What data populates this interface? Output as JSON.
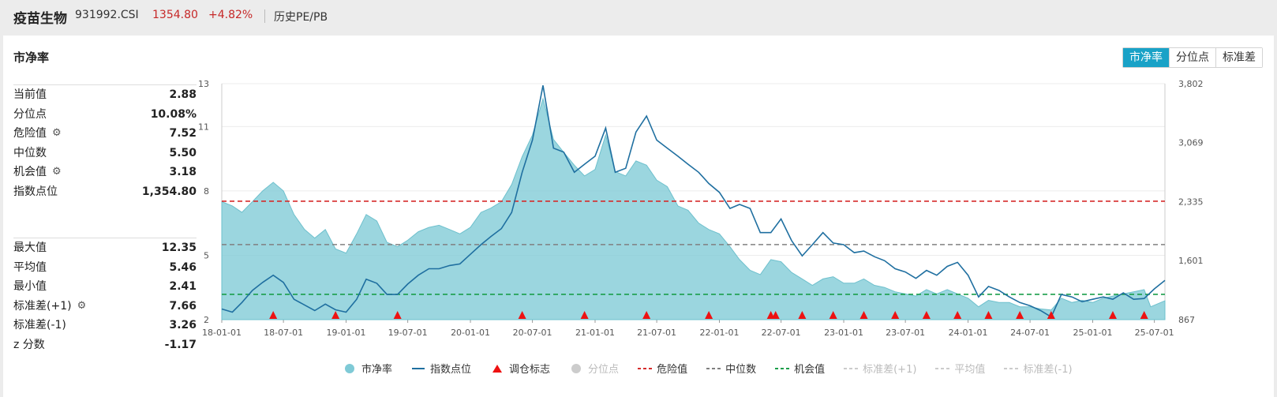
{
  "header": {
    "name": "疫苗生物",
    "code": "931992.CSI",
    "price": "1354.80",
    "change": "+4.82%",
    "tab": "历史PE/PB"
  },
  "card": {
    "title": "市净率",
    "buttons": [
      {
        "label": "市净率",
        "active": true
      },
      {
        "label": "分位点",
        "active": false
      },
      {
        "label": "标准差",
        "active": false
      }
    ]
  },
  "stats_top": [
    {
      "label": "当前值",
      "value": "2.88",
      "icon": ""
    },
    {
      "label": "分位点",
      "value": "10.08%",
      "icon": ""
    },
    {
      "label": "危险值",
      "value": "7.52",
      "icon": "gear-icon"
    },
    {
      "label": "中位数",
      "value": "5.50",
      "icon": ""
    },
    {
      "label": "机会值",
      "value": "3.18",
      "icon": "gear-icon"
    },
    {
      "label": "指数点位",
      "value": "1,354.80",
      "icon": ""
    }
  ],
  "stats_bottom": [
    {
      "label": "最大值",
      "value": "12.35",
      "icon": ""
    },
    {
      "label": "平均值",
      "value": "5.46",
      "icon": ""
    },
    {
      "label": "最小值",
      "value": "2.41",
      "icon": ""
    },
    {
      "label": "标准差(+1)",
      "value": "7.66",
      "icon": "gear-icon"
    },
    {
      "label": "标准差(-1)",
      "value": "3.26",
      "icon": ""
    },
    {
      "label": "z 分数",
      "value": "-1.17",
      "icon": ""
    }
  ],
  "legend": [
    {
      "label": "市净率",
      "kind": "dot",
      "color": "#7fcad6",
      "active": true
    },
    {
      "label": "指数点位",
      "kind": "line",
      "color": "#1f6fa0",
      "active": true
    },
    {
      "label": "调仓标志",
      "kind": "triangle",
      "color": "#ee1111",
      "active": true
    },
    {
      "label": "分位点",
      "kind": "dot",
      "color": "#cccccc",
      "active": false
    },
    {
      "label": "危险值",
      "kind": "dash",
      "color": "#d62b2b",
      "active": true
    },
    {
      "label": "中位数",
      "kind": "dash",
      "color": "#808080",
      "active": true
    },
    {
      "label": "机会值",
      "kind": "dash",
      "color": "#1a9e4a",
      "active": true
    },
    {
      "label": "标准差(+1)",
      "kind": "dash",
      "color": "#cccccc",
      "active": false
    },
    {
      "label": "平均值",
      "kind": "dash",
      "color": "#cccccc",
      "active": false
    },
    {
      "label": "标准差(-1)",
      "kind": "dash",
      "color": "#cccccc",
      "active": false
    }
  ],
  "chart_data": {
    "type": "area",
    "x_start": "2018-01-01",
    "x_end": "2025-08-01",
    "x_ticks": [
      "18-01-01",
      "18-07-01",
      "19-01-01",
      "19-07-01",
      "20-01-01",
      "20-07-01",
      "21-01-01",
      "21-07-01",
      "22-01-01",
      "22-07-01",
      "23-01-01",
      "23-07-01",
      "24-01-01",
      "24-07-01",
      "25-01-01",
      "25-07-01"
    ],
    "y_left_range": [
      2,
      13
    ],
    "y_left_ticks": [
      2,
      5,
      8,
      11,
      13
    ],
    "y_right_range": [
      867,
      3802
    ],
    "y_right_ticks": [
      "867",
      "1,601",
      "2,335",
      "3,069",
      "3,802"
    ],
    "reference_lines": [
      {
        "name": "危险值",
        "value": 7.52,
        "color": "#d62b2b"
      },
      {
        "name": "中位数",
        "value": 5.5,
        "color": "#808080"
      },
      {
        "name": "机会值",
        "value": 3.18,
        "color": "#1a9e4a"
      }
    ],
    "rebalance_dates": [
      "2018-06-01",
      "2018-12-01",
      "2019-06-01",
      "2020-06-01",
      "2020-12-01",
      "2021-06-01",
      "2021-12-01",
      "2022-06-01",
      "2022-06-15",
      "2022-09-01",
      "2022-12-01",
      "2023-03-01",
      "2023-06-01",
      "2023-09-01",
      "2023-12-01",
      "2024-03-01",
      "2024-06-01",
      "2024-09-01",
      "2025-03-01",
      "2025-06-01"
    ],
    "series": [
      {
        "name": "市净率",
        "axis": "left",
        "color": "#7fcad6",
        "points": [
          [
            "2018-01-01",
            7.5
          ],
          [
            "2018-02-01",
            7.3
          ],
          [
            "2018-03-01",
            7.0
          ],
          [
            "2018-04-01",
            7.5
          ],
          [
            "2018-05-01",
            8.0
          ],
          [
            "2018-06-01",
            8.4
          ],
          [
            "2018-07-01",
            8.0
          ],
          [
            "2018-08-01",
            6.9
          ],
          [
            "2018-09-01",
            6.2
          ],
          [
            "2018-10-01",
            5.8
          ],
          [
            "2018-11-01",
            6.2
          ],
          [
            "2018-12-01",
            5.3
          ],
          [
            "2019-01-01",
            5.1
          ],
          [
            "2019-02-01",
            6.0
          ],
          [
            "2019-03-01",
            6.9
          ],
          [
            "2019-04-01",
            6.6
          ],
          [
            "2019-05-01",
            5.6
          ],
          [
            "2019-06-01",
            5.4
          ],
          [
            "2019-07-01",
            5.7
          ],
          [
            "2019-08-01",
            6.1
          ],
          [
            "2019-09-01",
            6.3
          ],
          [
            "2019-10-01",
            6.4
          ],
          [
            "2019-11-01",
            6.2
          ],
          [
            "2019-12-01",
            6.0
          ],
          [
            "2020-01-01",
            6.3
          ],
          [
            "2020-02-01",
            7.0
          ],
          [
            "2020-03-01",
            7.2
          ],
          [
            "2020-04-01",
            7.5
          ],
          [
            "2020-05-01",
            8.3
          ],
          [
            "2020-06-01",
            9.6
          ],
          [
            "2020-07-01",
            10.6
          ],
          [
            "2020-08-01",
            12.3
          ],
          [
            "2020-09-01",
            10.4
          ],
          [
            "2020-10-01",
            9.8
          ],
          [
            "2020-11-01",
            9.2
          ],
          [
            "2020-12-01",
            8.7
          ],
          [
            "2021-01-01",
            9.0
          ],
          [
            "2021-02-01",
            10.6
          ],
          [
            "2021-03-01",
            8.9
          ],
          [
            "2021-04-01",
            8.7
          ],
          [
            "2021-05-01",
            9.4
          ],
          [
            "2021-06-01",
            9.2
          ],
          [
            "2021-07-01",
            8.5
          ],
          [
            "2021-08-01",
            8.2
          ],
          [
            "2021-09-01",
            7.3
          ],
          [
            "2021-10-01",
            7.1
          ],
          [
            "2021-11-01",
            6.5
          ],
          [
            "2021-12-01",
            6.2
          ],
          [
            "2022-01-01",
            6.0
          ],
          [
            "2022-02-01",
            5.4
          ],
          [
            "2022-03-01",
            4.8
          ],
          [
            "2022-04-01",
            4.3
          ],
          [
            "2022-05-01",
            4.1
          ],
          [
            "2022-06-01",
            4.8
          ],
          [
            "2022-07-01",
            4.7
          ],
          [
            "2022-08-01",
            4.2
          ],
          [
            "2022-09-01",
            3.9
          ],
          [
            "2022-10-01",
            3.6
          ],
          [
            "2022-11-01",
            3.9
          ],
          [
            "2022-12-01",
            4.0
          ],
          [
            "2023-01-01",
            3.7
          ],
          [
            "2023-02-01",
            3.7
          ],
          [
            "2023-03-01",
            3.9
          ],
          [
            "2023-04-01",
            3.6
          ],
          [
            "2023-05-01",
            3.5
          ],
          [
            "2023-06-01",
            3.3
          ],
          [
            "2023-07-01",
            3.2
          ],
          [
            "2023-08-01",
            3.1
          ],
          [
            "2023-09-01",
            3.4
          ],
          [
            "2023-10-01",
            3.2
          ],
          [
            "2023-11-01",
            3.4
          ],
          [
            "2023-12-01",
            3.2
          ],
          [
            "2024-01-01",
            3.0
          ],
          [
            "2024-02-01",
            2.6
          ],
          [
            "2024-03-01",
            2.9
          ],
          [
            "2024-04-01",
            2.8
          ],
          [
            "2024-05-01",
            2.8
          ],
          [
            "2024-06-01",
            2.6
          ],
          [
            "2024-07-01",
            2.6
          ],
          [
            "2024-08-01",
            2.5
          ],
          [
            "2024-09-01",
            2.45
          ],
          [
            "2024-10-01",
            3.0
          ],
          [
            "2024-11-01",
            2.8
          ],
          [
            "2024-12-01",
            2.9
          ],
          [
            "2025-01-01",
            2.8
          ],
          [
            "2025-02-01",
            3.0
          ],
          [
            "2025-03-01",
            3.1
          ],
          [
            "2025-04-01",
            3.2
          ],
          [
            "2025-05-01",
            3.3
          ],
          [
            "2025-06-01",
            3.4
          ],
          [
            "2025-06-20",
            2.6
          ],
          [
            "2025-08-01",
            2.88
          ]
        ]
      },
      {
        "name": "指数点位",
        "axis": "right",
        "color": "#1f6fa0",
        "points": [
          [
            "2018-01-01",
            1000
          ],
          [
            "2018-02-01",
            960
          ],
          [
            "2018-03-01",
            1080
          ],
          [
            "2018-04-01",
            1230
          ],
          [
            "2018-05-01",
            1330
          ],
          [
            "2018-06-01",
            1420
          ],
          [
            "2018-07-01",
            1330
          ],
          [
            "2018-08-01",
            1120
          ],
          [
            "2018-09-01",
            1050
          ],
          [
            "2018-10-01",
            980
          ],
          [
            "2018-11-01",
            1060
          ],
          [
            "2018-12-01",
            990
          ],
          [
            "2019-01-01",
            960
          ],
          [
            "2019-02-01",
            1120
          ],
          [
            "2019-03-01",
            1370
          ],
          [
            "2019-04-01",
            1320
          ],
          [
            "2019-05-01",
            1180
          ],
          [
            "2019-06-01",
            1180
          ],
          [
            "2019-07-01",
            1310
          ],
          [
            "2019-08-01",
            1420
          ],
          [
            "2019-09-01",
            1500
          ],
          [
            "2019-10-01",
            1500
          ],
          [
            "2019-11-01",
            1540
          ],
          [
            "2019-12-01",
            1560
          ],
          [
            "2020-01-01",
            1680
          ],
          [
            "2020-02-01",
            1800
          ],
          [
            "2020-03-01",
            1900
          ],
          [
            "2020-04-01",
            2000
          ],
          [
            "2020-05-01",
            2200
          ],
          [
            "2020-06-01",
            2700
          ],
          [
            "2020-07-01",
            3100
          ],
          [
            "2020-08-01",
            3780
          ],
          [
            "2020-09-01",
            3000
          ],
          [
            "2020-10-01",
            2950
          ],
          [
            "2020-11-01",
            2700
          ],
          [
            "2020-12-01",
            2800
          ],
          [
            "2021-01-01",
            2900
          ],
          [
            "2021-02-01",
            3250
          ],
          [
            "2021-03-01",
            2700
          ],
          [
            "2021-04-01",
            2750
          ],
          [
            "2021-05-01",
            3200
          ],
          [
            "2021-06-01",
            3400
          ],
          [
            "2021-07-01",
            3100
          ],
          [
            "2021-08-01",
            3000
          ],
          [
            "2021-09-01",
            2900
          ],
          [
            "2021-10-01",
            2800
          ],
          [
            "2021-11-01",
            2700
          ],
          [
            "2021-12-01",
            2560
          ],
          [
            "2022-01-01",
            2450
          ],
          [
            "2022-02-01",
            2250
          ],
          [
            "2022-03-01",
            2300
          ],
          [
            "2022-04-01",
            2250
          ],
          [
            "2022-05-01",
            1950
          ],
          [
            "2022-06-01",
            1950
          ],
          [
            "2022-07-01",
            2120
          ],
          [
            "2022-08-01",
            1850
          ],
          [
            "2022-09-01",
            1660
          ],
          [
            "2022-10-01",
            1800
          ],
          [
            "2022-11-01",
            1950
          ],
          [
            "2022-12-01",
            1820
          ],
          [
            "2023-01-01",
            1800
          ],
          [
            "2023-02-01",
            1700
          ],
          [
            "2023-03-01",
            1720
          ],
          [
            "2023-04-01",
            1650
          ],
          [
            "2023-05-01",
            1600
          ],
          [
            "2023-06-01",
            1500
          ],
          [
            "2023-07-01",
            1460
          ],
          [
            "2023-08-01",
            1380
          ],
          [
            "2023-09-01",
            1480
          ],
          [
            "2023-10-01",
            1420
          ],
          [
            "2023-11-01",
            1530
          ],
          [
            "2023-12-01",
            1580
          ],
          [
            "2024-01-01",
            1420
          ],
          [
            "2024-02-01",
            1150
          ],
          [
            "2024-03-01",
            1280
          ],
          [
            "2024-04-01",
            1230
          ],
          [
            "2024-05-01",
            1150
          ],
          [
            "2024-06-01",
            1080
          ],
          [
            "2024-07-01",
            1040
          ],
          [
            "2024-08-01",
            980
          ],
          [
            "2024-09-01",
            900
          ],
          [
            "2024-10-01",
            1180
          ],
          [
            "2024-11-01",
            1150
          ],
          [
            "2024-12-01",
            1090
          ],
          [
            "2025-01-01",
            1120
          ],
          [
            "2025-02-01",
            1150
          ],
          [
            "2025-03-01",
            1120
          ],
          [
            "2025-04-01",
            1200
          ],
          [
            "2025-05-01",
            1120
          ],
          [
            "2025-06-01",
            1130
          ],
          [
            "2025-07-01",
            1250
          ],
          [
            "2025-08-01",
            1354.8
          ]
        ]
      }
    ]
  }
}
